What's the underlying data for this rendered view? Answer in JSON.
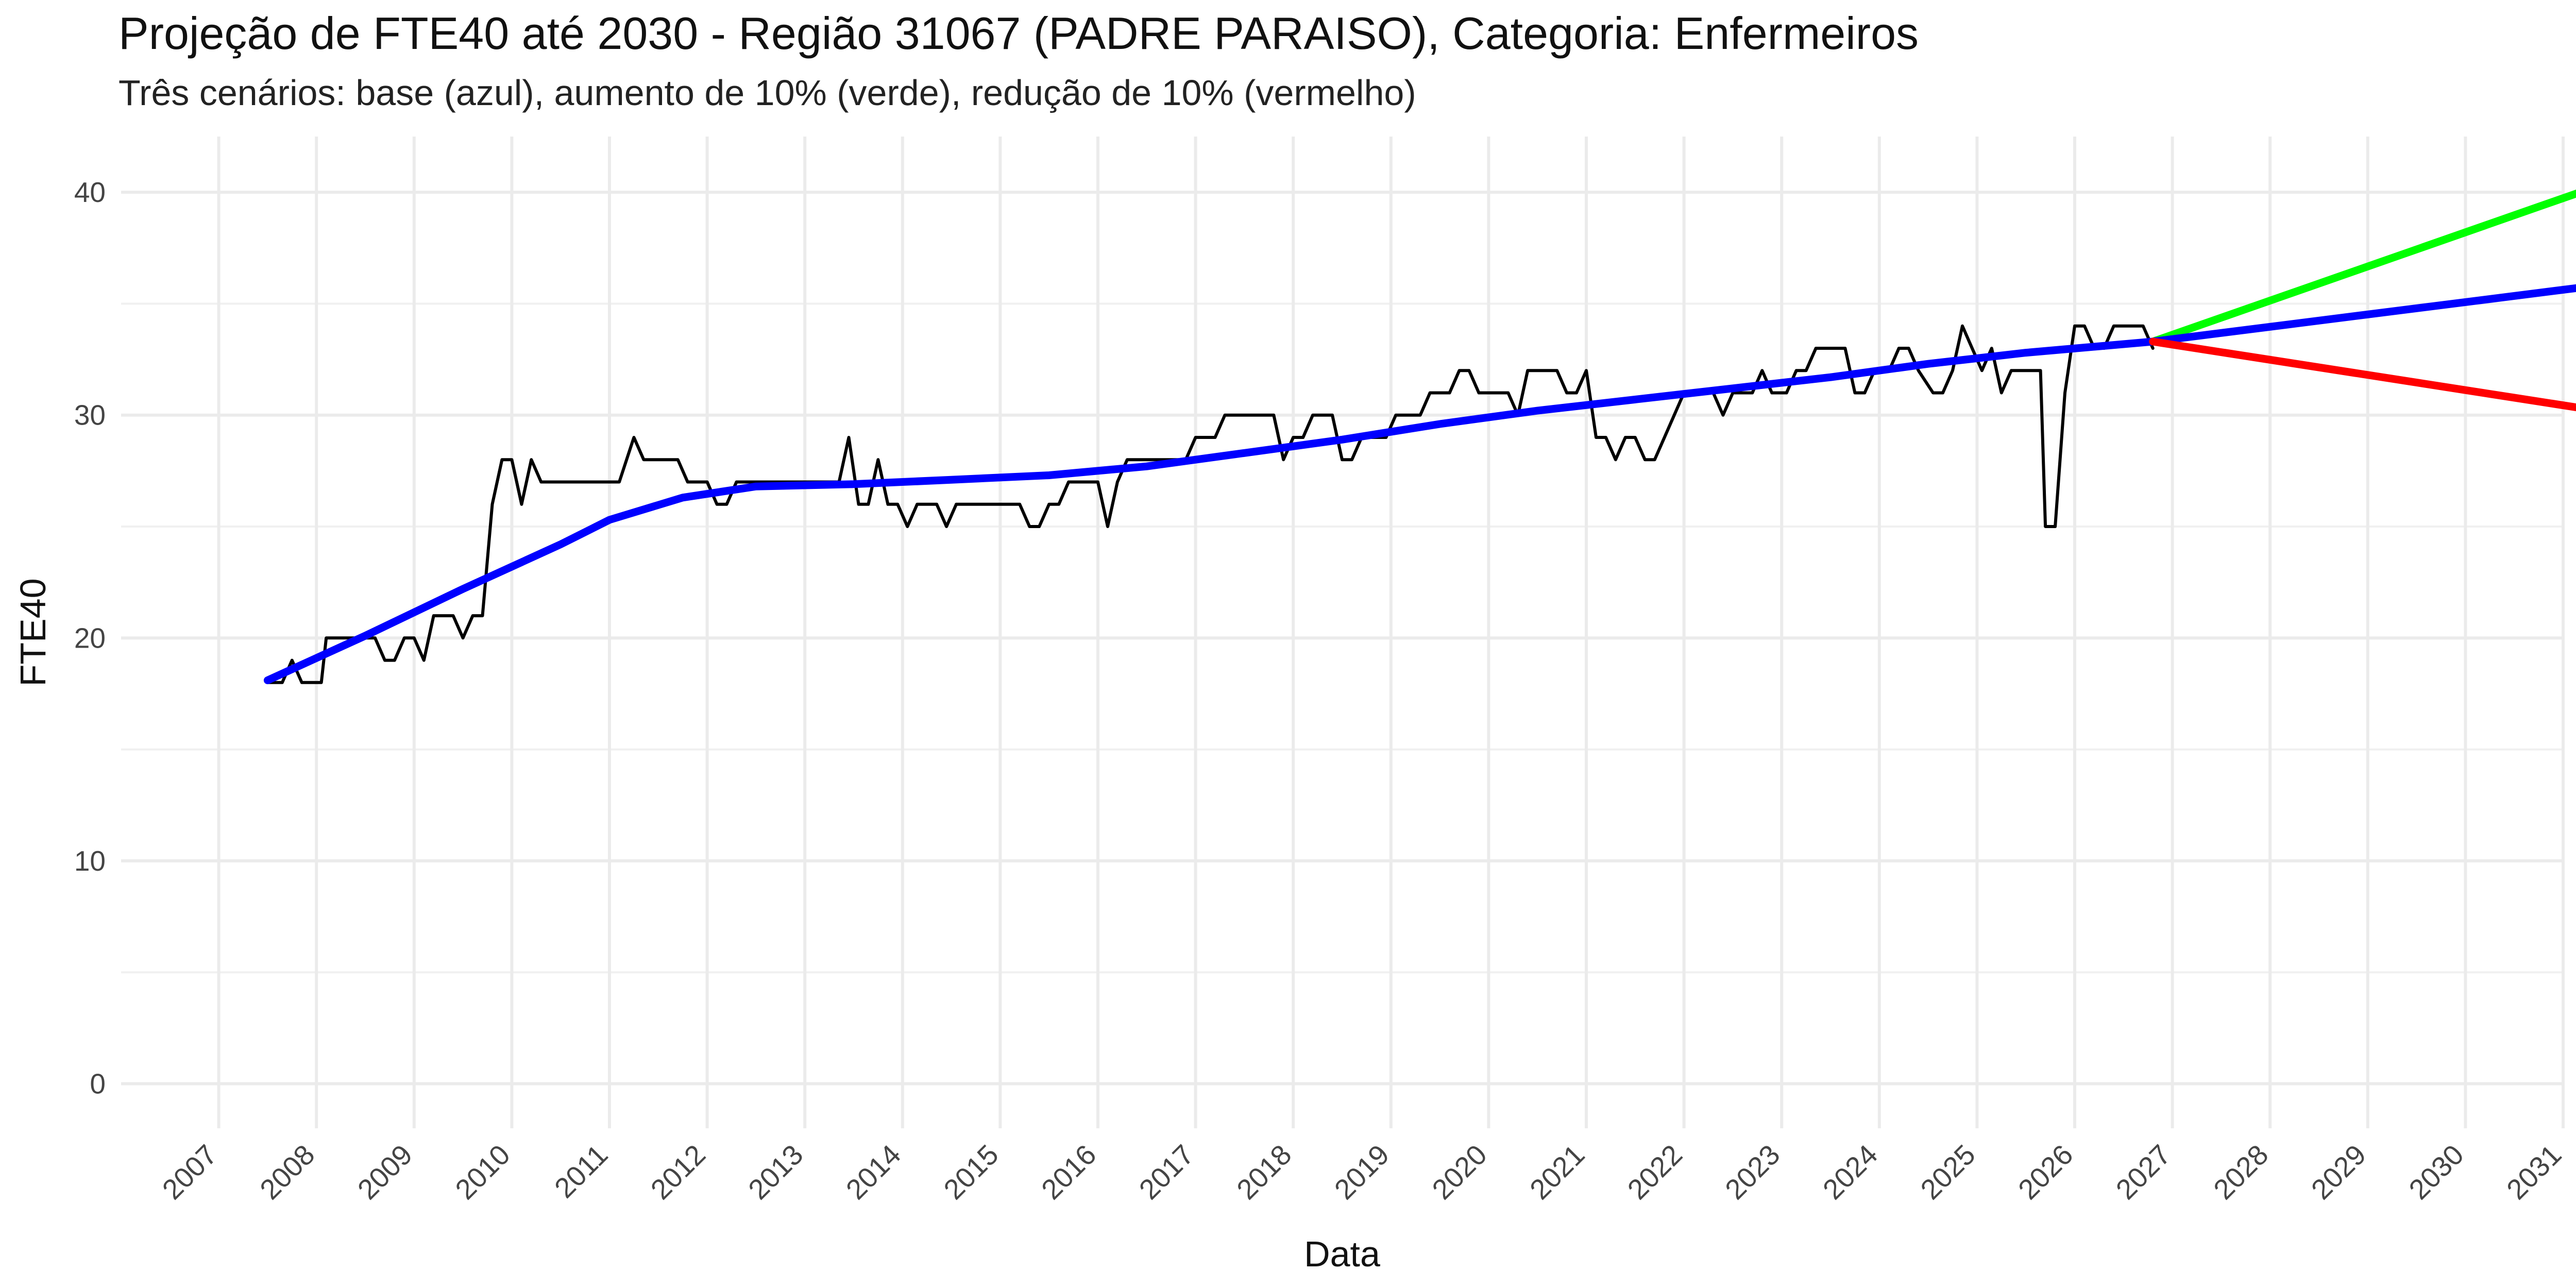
{
  "chart_data": {
    "type": "line",
    "title": "Projeção de FTE40 até 2030 - Região 31067 (PADRE PARAISO), Categoria: Enfermeiros",
    "subtitle": "Três cenários: base (azul), aumento de 10% (verde), redução de 10% (vermelho)",
    "xlabel": "Data",
    "ylabel": "FTE40",
    "xlim": [
      2006.5,
      2031.5
    ],
    "ylim": [
      -2,
      42.5
    ],
    "x_ticks": [
      "2007",
      "2008",
      "2009",
      "2010",
      "2011",
      "2012",
      "2013",
      "2014",
      "2015",
      "2016",
      "2017",
      "2018",
      "2019",
      "2020",
      "2021",
      "2022",
      "2023",
      "2024",
      "2025",
      "2026",
      "2027",
      "2028",
      "2029",
      "2030",
      "2031"
    ],
    "y_ticks": [
      0,
      10,
      20,
      30,
      40
    ],
    "grid": true,
    "series": [
      {
        "color": "#000000",
        "points": [
          [
            2008.0,
            18
          ],
          [
            2008.15,
            18
          ],
          [
            2008.25,
            19
          ],
          [
            2008.35,
            18
          ],
          [
            2008.55,
            18
          ],
          [
            2008.6,
            20
          ],
          [
            2008.9,
            20
          ],
          [
            2009.0,
            20
          ],
          [
            2009.1,
            20
          ],
          [
            2009.2,
            19
          ],
          [
            2009.3,
            19
          ],
          [
            2009.4,
            20
          ],
          [
            2009.5,
            20
          ],
          [
            2009.6,
            19
          ],
          [
            2009.7,
            21
          ],
          [
            2009.8,
            21
          ],
          [
            2009.9,
            21
          ],
          [
            2010.0,
            20
          ],
          [
            2010.1,
            21
          ],
          [
            2010.2,
            21
          ],
          [
            2010.3,
            26
          ],
          [
            2010.4,
            28
          ],
          [
            2010.5,
            28
          ],
          [
            2010.6,
            26
          ],
          [
            2010.7,
            28
          ],
          [
            2010.8,
            27
          ],
          [
            2011.0,
            27
          ],
          [
            2011.3,
            27
          ],
          [
            2011.5,
            27
          ],
          [
            2011.6,
            27
          ],
          [
            2011.75,
            29
          ],
          [
            2011.85,
            28
          ],
          [
            2012.0,
            28
          ],
          [
            2012.2,
            28
          ],
          [
            2012.3,
            27
          ],
          [
            2012.5,
            27
          ],
          [
            2012.6,
            26
          ],
          [
            2012.7,
            26
          ],
          [
            2012.8,
            27
          ],
          [
            2013.0,
            27
          ],
          [
            2013.3,
            27
          ],
          [
            2013.6,
            27
          ],
          [
            2013.85,
            27
          ],
          [
            2013.95,
            29
          ],
          [
            2014.05,
            26
          ],
          [
            2014.15,
            26
          ],
          [
            2014.25,
            28
          ],
          [
            2014.35,
            26
          ],
          [
            2014.45,
            26
          ],
          [
            2014.55,
            25
          ],
          [
            2014.65,
            26
          ],
          [
            2014.75,
            26
          ],
          [
            2014.85,
            26
          ],
          [
            2014.95,
            25
          ],
          [
            2015.05,
            26
          ],
          [
            2015.3,
            26
          ],
          [
            2015.6,
            26
          ],
          [
            2015.7,
            26
          ],
          [
            2015.8,
            25
          ],
          [
            2015.9,
            25
          ],
          [
            2016.0,
            26
          ],
          [
            2016.1,
            26
          ],
          [
            2016.2,
            27
          ],
          [
            2016.3,
            27
          ],
          [
            2016.4,
            27
          ],
          [
            2016.5,
            27
          ],
          [
            2016.6,
            25
          ],
          [
            2016.7,
            27
          ],
          [
            2016.8,
            28
          ],
          [
            2017.0,
            28
          ],
          [
            2017.3,
            28
          ],
          [
            2017.4,
            28
          ],
          [
            2017.5,
            29
          ],
          [
            2017.6,
            29
          ],
          [
            2017.7,
            29
          ],
          [
            2017.8,
            30
          ],
          [
            2018.0,
            30
          ],
          [
            2018.2,
            30
          ],
          [
            2018.3,
            30
          ],
          [
            2018.4,
            28
          ],
          [
            2018.5,
            29
          ],
          [
            2018.6,
            29
          ],
          [
            2018.7,
            30
          ],
          [
            2018.9,
            30
          ],
          [
            2019.0,
            28
          ],
          [
            2019.1,
            28
          ],
          [
            2019.2,
            29
          ],
          [
            2019.3,
            29
          ],
          [
            2019.45,
            29
          ],
          [
            2019.55,
            30
          ],
          [
            2019.8,
            30
          ],
          [
            2019.9,
            31
          ],
          [
            2020.0,
            31
          ],
          [
            2020.1,
            31
          ],
          [
            2020.2,
            32
          ],
          [
            2020.3,
            32
          ],
          [
            2020.4,
            31
          ],
          [
            2020.7,
            31
          ],
          [
            2020.8,
            30
          ],
          [
            2020.9,
            32
          ],
          [
            2021.0,
            32
          ],
          [
            2021.2,
            32
          ],
          [
            2021.3,
            31
          ],
          [
            2021.4,
            31
          ],
          [
            2021.5,
            32
          ],
          [
            2021.6,
            29
          ],
          [
            2021.7,
            29
          ],
          [
            2021.8,
            28
          ],
          [
            2021.9,
            29
          ],
          [
            2022.0,
            29
          ],
          [
            2022.1,
            28
          ],
          [
            2022.2,
            28
          ],
          [
            2022.3,
            29
          ],
          [
            2022.5,
            31
          ],
          [
            2022.7,
            31
          ],
          [
            2022.8,
            31
          ],
          [
            2022.9,
            30
          ],
          [
            2023.0,
            31
          ],
          [
            2023.2,
            31
          ],
          [
            2023.3,
            32
          ],
          [
            2023.4,
            31
          ],
          [
            2023.55,
            31
          ],
          [
            2023.65,
            32
          ],
          [
            2023.75,
            32
          ],
          [
            2023.85,
            33
          ],
          [
            2024.0,
            33
          ],
          [
            2024.15,
            33
          ],
          [
            2024.25,
            31
          ],
          [
            2024.35,
            31
          ],
          [
            2024.45,
            32
          ],
          [
            2024.6,
            32
          ],
          [
            2024.7,
            33
          ],
          [
            2024.8,
            33
          ],
          [
            2024.9,
            32
          ],
          [
            2025.05,
            31
          ],
          [
            2025.15,
            31
          ],
          [
            2025.25,
            32
          ],
          [
            2025.35,
            34
          ],
          [
            2025.45,
            33
          ],
          [
            2025.55,
            32
          ],
          [
            2025.65,
            33
          ],
          [
            2025.75,
            31
          ],
          [
            2025.85,
            32
          ],
          [
            2026.0,
            32
          ],
          [
            2026.15,
            32
          ],
          [
            2026.2,
            25
          ],
          [
            2026.3,
            25
          ],
          [
            2026.4,
            31
          ],
          [
            2026.5,
            34
          ],
          [
            2026.6,
            34
          ],
          [
            2026.7,
            33
          ],
          [
            2026.8,
            33
          ],
          [
            2026.9,
            34
          ],
          [
            2027.1,
            34
          ],
          [
            2027.2,
            34
          ],
          [
            2027.3,
            33
          ]
        ]
      },
      {
        "color": "#0000ff",
        "points": [
          [
            2008.0,
            18.1
          ],
          [
            2009.0,
            20.1
          ],
          [
            2010.0,
            22.2
          ],
          [
            2011.0,
            24.2
          ],
          [
            2011.5,
            25.3
          ],
          [
            2012.25,
            26.3
          ],
          [
            2013.0,
            26.8
          ],
          [
            2014.0,
            26.9
          ],
          [
            2015.0,
            27.1
          ],
          [
            2016.0,
            27.3
          ],
          [
            2017.0,
            27.7
          ],
          [
            2018.0,
            28.3
          ],
          [
            2019.0,
            28.9
          ],
          [
            2020.0,
            29.6
          ],
          [
            2021.0,
            30.2
          ],
          [
            2022.0,
            30.7
          ],
          [
            2023.0,
            31.2
          ],
          [
            2024.0,
            31.7
          ],
          [
            2025.0,
            32.3
          ],
          [
            2026.0,
            32.8
          ],
          [
            2027.3,
            33.3
          ]
        ]
      },
      {
        "color": "#00ff00",
        "points": [
          [
            2027.3,
            33.3
          ],
          [
            2032.0,
            40.5
          ]
        ]
      },
      {
        "color": "#0000ff",
        "points": [
          [
            2027.3,
            33.3
          ],
          [
            2032.0,
            35.9
          ]
        ]
      },
      {
        "color": "#ff0000",
        "points": [
          [
            2027.3,
            33.3
          ],
          [
            2032.0,
            30.1
          ]
        ]
      }
    ]
  }
}
